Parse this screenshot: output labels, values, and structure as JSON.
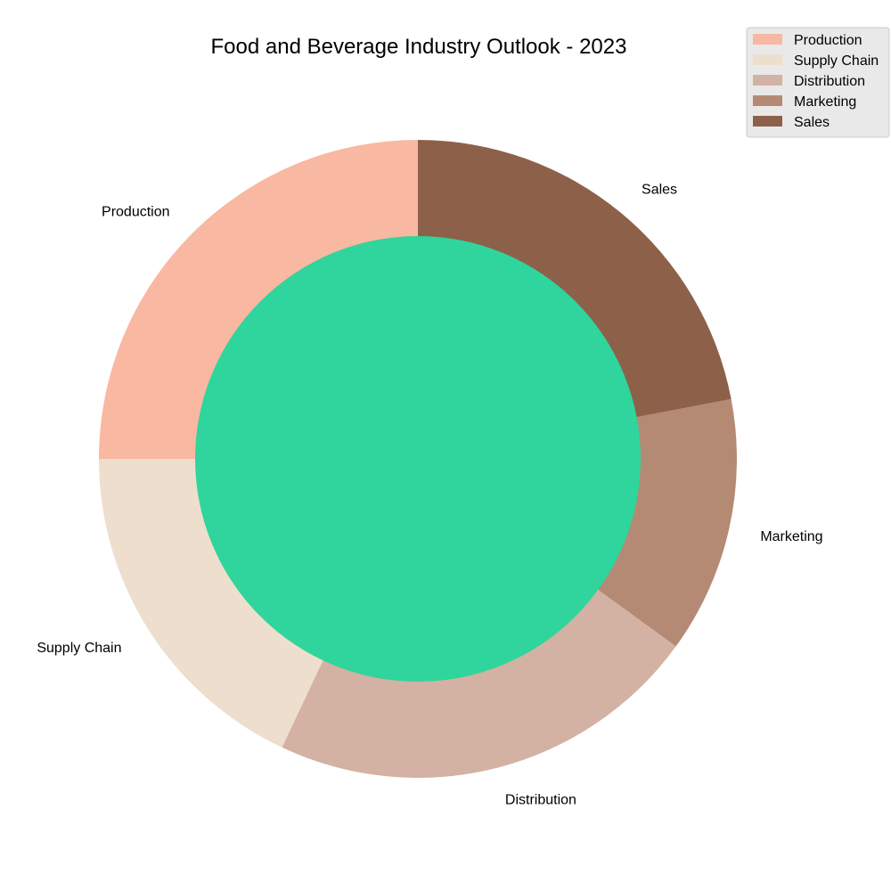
{
  "chart_data": {
    "type": "pie",
    "title": "Food and Beverage Industry Outlook - 2023",
    "donut": true,
    "center_color": "#2fd59c",
    "legend_position": "top-right",
    "categories": [
      "Production",
      "Supply Chain",
      "Distribution",
      "Marketing",
      "Sales"
    ],
    "values": [
      25,
      18,
      22,
      13,
      22
    ],
    "colors": [
      "#f8b8a2",
      "#eedece",
      "#d3b1a3",
      "#b48a75",
      "#8d6149"
    ]
  }
}
